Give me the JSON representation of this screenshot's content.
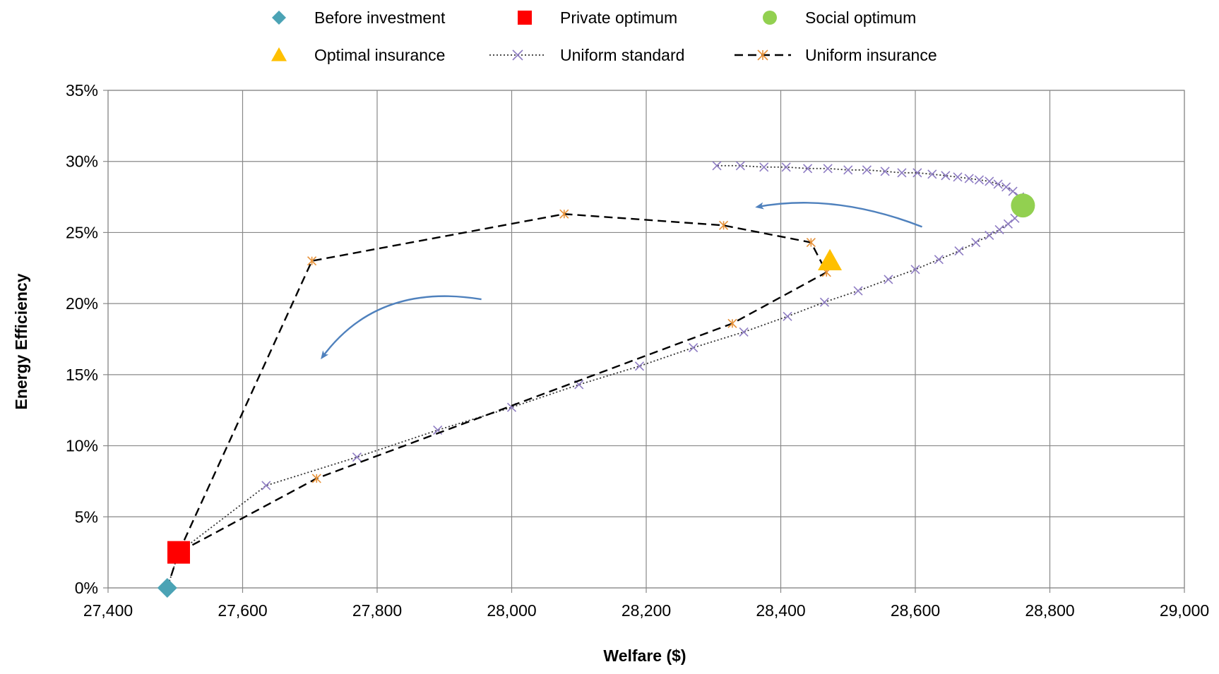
{
  "chart_data": {
    "type": "scatter",
    "title": "",
    "xlabel": "Welfare ($)",
    "ylabel": "Energy Efficiency",
    "xlim": [
      27400,
      29000
    ],
    "ylim": [
      0,
      0.35
    ],
    "x_ticks": [
      27400,
      27600,
      27800,
      28000,
      28200,
      28400,
      28600,
      28800,
      29000
    ],
    "x_tick_labels": [
      "27,400",
      "27,600",
      "27,800",
      "28,000",
      "28,200",
      "28,400",
      "28,600",
      "28,800",
      "29,000"
    ],
    "y_ticks": [
      0,
      0.05,
      0.1,
      0.15,
      0.2,
      0.25,
      0.3,
      0.35
    ],
    "y_tick_labels": [
      "0%",
      "5%",
      "10%",
      "15%",
      "20%",
      "25%",
      "30%",
      "35%"
    ],
    "grid": true,
    "legend_position": "top",
    "series": [
      {
        "name": "Uniform standard",
        "kind": "line-dotted",
        "marker": "x",
        "color": "#333333",
        "marker_color": "#8e7cc3",
        "points": [
          [
            27488,
            0.0
          ],
          [
            27505,
            0.025
          ],
          [
            27635,
            0.072
          ],
          [
            27770,
            0.092
          ],
          [
            27890,
            0.111
          ],
          [
            28000,
            0.127
          ],
          [
            28100,
            0.143
          ],
          [
            28190,
            0.156
          ],
          [
            28270,
            0.169
          ],
          [
            28345,
            0.18
          ],
          [
            28410,
            0.191
          ],
          [
            28465,
            0.201
          ],
          [
            28515,
            0.209
          ],
          [
            28560,
            0.217
          ],
          [
            28600,
            0.224
          ],
          [
            28635,
            0.231
          ],
          [
            28665,
            0.237
          ],
          [
            28690,
            0.243
          ],
          [
            28710,
            0.248
          ],
          [
            28725,
            0.252
          ],
          [
            28738,
            0.256
          ],
          [
            28748,
            0.26
          ],
          [
            28756,
            0.264
          ],
          [
            28760,
            0.268
          ],
          [
            28760,
            0.27
          ],
          [
            28755,
            0.275
          ],
          [
            28745,
            0.279
          ],
          [
            28735,
            0.282
          ],
          [
            28723,
            0.284
          ],
          [
            28710,
            0.286
          ],
          [
            28695,
            0.287
          ],
          [
            28680,
            0.288
          ],
          [
            28663,
            0.289
          ],
          [
            28645,
            0.29
          ],
          [
            28625,
            0.291
          ],
          [
            28603,
            0.292
          ],
          [
            28580,
            0.292
          ],
          [
            28555,
            0.293
          ],
          [
            28528,
            0.294
          ],
          [
            28500,
            0.294
          ],
          [
            28470,
            0.295
          ],
          [
            28440,
            0.295
          ],
          [
            28408,
            0.296
          ],
          [
            28375,
            0.296
          ],
          [
            28340,
            0.297
          ],
          [
            28305,
            0.297
          ]
        ]
      },
      {
        "name": "Uniform insurance",
        "kind": "line-dashed",
        "marker": "asterisk",
        "color": "#000000",
        "marker_color": "#e69138",
        "points": [
          [
            27505,
            0.025
          ],
          [
            27703,
            0.23
          ],
          [
            28078,
            0.263
          ],
          [
            28315,
            0.255
          ],
          [
            28445,
            0.243
          ],
          [
            28468,
            0.222
          ],
          [
            28328,
            0.186
          ],
          [
            27710,
            0.077
          ],
          [
            27505,
            0.025
          ],
          [
            27488,
            0.0
          ]
        ]
      },
      {
        "name": "Before investment",
        "kind": "marker",
        "marker": "diamond",
        "color": "#4ba3b5",
        "points": [
          [
            27488,
            0.0
          ]
        ]
      },
      {
        "name": "Private optimum",
        "kind": "marker",
        "marker": "square",
        "color": "#ff0000",
        "points": [
          [
            27505,
            0.025
          ]
        ]
      },
      {
        "name": "Social optimum",
        "kind": "marker",
        "marker": "circle",
        "color": "#92d050",
        "points": [
          [
            28760,
            0.269
          ]
        ]
      },
      {
        "name": "Optimal insurance",
        "kind": "marker",
        "marker": "triangle",
        "color": "#ffc000",
        "points": [
          [
            28473,
            0.23
          ]
        ]
      }
    ],
    "arrows": [
      {
        "from": [
          28610,
          0.254
        ],
        "control": [
          28480,
          0.278
        ],
        "to": [
          28365,
          0.268
        ],
        "color": "#4f81bd"
      },
      {
        "from": [
          27955,
          0.203
        ],
        "control": [
          27800,
          0.215
        ],
        "to": [
          27718,
          0.162
        ],
        "color": "#4f81bd"
      }
    ],
    "legend": [
      {
        "label": "Before investment",
        "marker": "diamond",
        "color": "#4ba3b5"
      },
      {
        "label": "Private optimum",
        "marker": "square",
        "color": "#ff0000"
      },
      {
        "label": "Social optimum",
        "marker": "circle",
        "color": "#92d050"
      },
      {
        "label": "Optimal insurance",
        "marker": "triangle",
        "color": "#ffc000"
      },
      {
        "label": "Uniform standard",
        "marker": "x",
        "line": "dotted",
        "color": "#333333",
        "marker_color": "#8e7cc3"
      },
      {
        "label": "Uniform insurance",
        "marker": "asterisk",
        "line": "dashed",
        "color": "#000000",
        "marker_color": "#e69138"
      }
    ]
  }
}
